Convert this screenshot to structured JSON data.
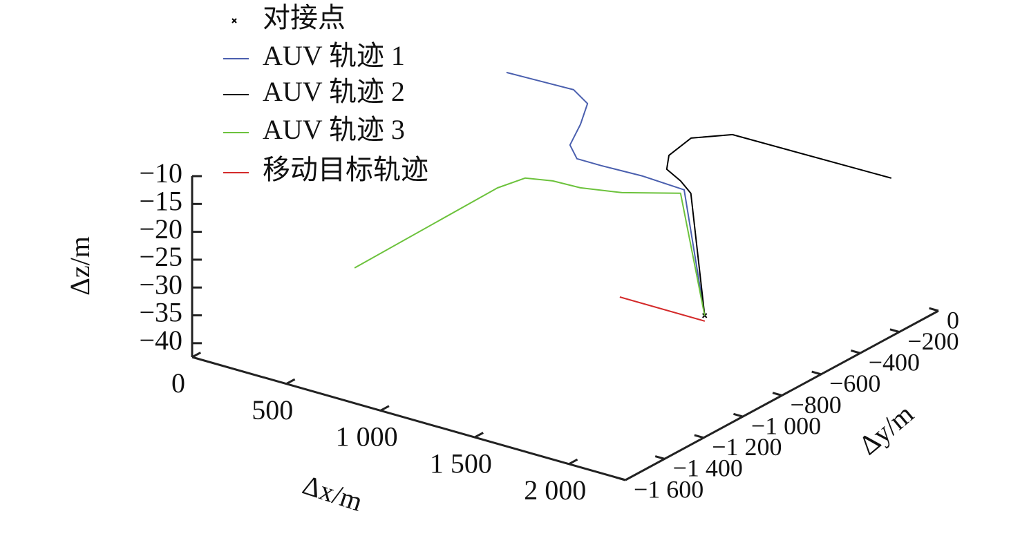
{
  "chart_data": {
    "type": "line3d",
    "xlabel": "Δx/m",
    "ylabel": "Δy/m",
    "zlabel": "Δz/m",
    "xlim": [
      0,
      2300
    ],
    "ylim": [
      -1600,
      0
    ],
    "zlim": [
      -42.5,
      -10
    ],
    "xticks": [
      0,
      500,
      {
        "value": 1000,
        "label": "1 000"
      },
      {
        "value": 1500,
        "label": "1 500"
      },
      {
        "value": 2000,
        "label": "2 000"
      }
    ],
    "yticks": [
      {
        "value": -1600,
        "label": "−1 600"
      },
      {
        "value": -1400,
        "label": "−1 400"
      },
      {
        "value": -1200,
        "label": "−1 200"
      },
      {
        "value": -1000,
        "label": "−1 000"
      },
      {
        "value": -800,
        "label": "−800"
      },
      {
        "value": -600,
        "label": "−600"
      },
      {
        "value": -400,
        "label": "−400"
      },
      {
        "value": -200,
        "label": "−200"
      },
      0
    ],
    "zticks": [
      {
        "value": -10,
        "label": "−10"
      },
      {
        "value": -15,
        "label": "−15"
      },
      {
        "value": -20,
        "label": "−20"
      },
      {
        "value": -25,
        "label": "−25"
      },
      {
        "value": -30,
        "label": "−30"
      },
      {
        "value": -35,
        "label": "−35"
      },
      {
        "value": -40,
        "label": "−40"
      }
    ],
    "series": [
      {
        "name": "对接点",
        "color": "#000000",
        "marker": "x",
        "x": [
          1786
        ],
        "y": [
          -700
        ],
        "z": [
          -35
        ]
      },
      {
        "name": "AUV 轨迹 1",
        "color": "#4a5fae",
        "x": [
          355,
          700,
          837,
          946,
          1043,
          1156,
          1285,
          1496,
          1729,
          1786
        ],
        "y": [
          -335,
          -324,
          -385,
          -526,
          -673,
          -746,
          -746,
          -738,
          -750,
          -700
        ],
        "z": [
          -12,
          -12,
          -12,
          -12,
          -12,
          -12,
          -12,
          -12,
          -12,
          -35
        ]
      },
      {
        "name": "AUV 轨迹 2",
        "color": "#000000",
        "x": [
          2375,
          1542,
          1420,
          1454,
          1536,
          1659,
          1775,
          1786
        ],
        "y": [
          -313,
          -323,
          -417,
          -563,
          -653,
          -701,
          -760,
          -700
        ],
        "z": [
          -12,
          -12,
          -12,
          -12,
          -12,
          -12,
          -12,
          -35
        ]
      },
      {
        "name": "AUV 轨迹 3",
        "color": "#6cc23c",
        "x": [
          798,
          1031,
          1100,
          1214,
          1355,
          1531,
          1739,
          1786
        ],
        "y": [
          -1538,
          -1032,
          -957,
          -926,
          -920,
          -877,
          -778,
          -700
        ],
        "z": [
          -20,
          -13,
          -12,
          -12,
          -12,
          -12,
          -12,
          -35
        ]
      },
      {
        "name": "移动目标轨迹",
        "color": "#d42a2a",
        "x": [
          1371,
          1822
        ],
        "y": [
          -734,
          -734
        ],
        "z": [
          -35,
          -35
        ]
      }
    ]
  }
}
